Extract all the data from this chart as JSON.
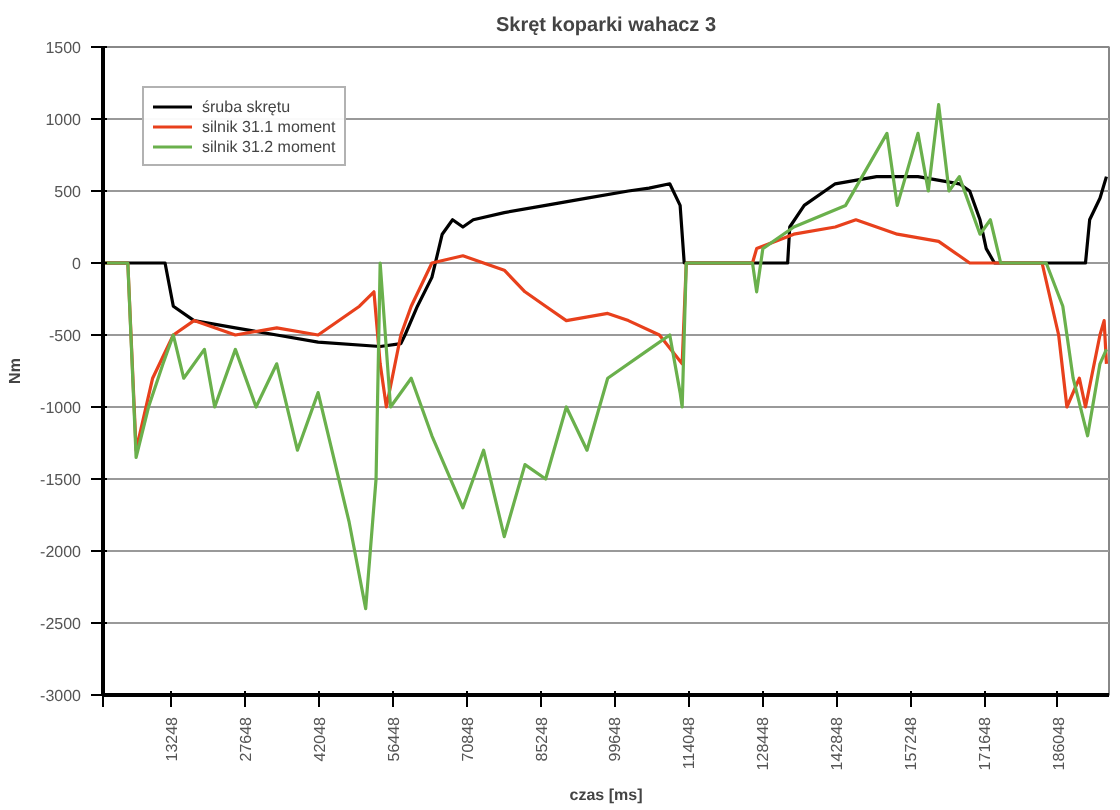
{
  "chart_data": {
    "type": "line",
    "title": "Skręt koparki wahacz 3",
    "xlabel": "czas [ms]",
    "ylabel": "Nm",
    "xlim": [
      0,
      196000
    ],
    "ylim": [
      -3000,
      1500
    ],
    "xticks": [
      {
        "value": 0,
        "label": null
      },
      13248,
      27648,
      42048,
      56448,
      70848,
      85248,
      99648,
      114048,
      128448,
      142848,
      157248,
      171648,
      186048
    ],
    "yticks": [
      -3000,
      -2500,
      -2000,
      -1500,
      -1000,
      -500,
      0,
      500,
      1000,
      1500
    ],
    "grid": "y",
    "legend": "top left",
    "marker": "none",
    "line_style": "solid",
    "series": [
      {
        "name": "śruba skrętu",
        "color": "#000000",
        "x": [
          0,
          12090,
          13700,
          17730,
          25790,
          33850,
          41910,
          54000,
          58030,
          58840,
          61260,
          64080,
          66090,
          68110,
          70120,
          72140,
          78180,
          86240,
          94300,
          102360,
          106390,
          110420,
          112440,
          113240,
          126540,
          133390,
          133800,
          136620,
          142660,
          150720,
          158780,
          166840,
          168860,
          170870,
          172080,
          173690,
          191420,
          192230,
          194240,
          195500
        ],
        "values": [
          0,
          0,
          -300,
          -400,
          -450,
          -500,
          -550,
          -580,
          -560,
          -500,
          -300,
          -100,
          200,
          300,
          250,
          300,
          350,
          400,
          450,
          500,
          520,
          550,
          400,
          0,
          0,
          0,
          250,
          400,
          550,
          600,
          600,
          550,
          500,
          300,
          100,
          0,
          0,
          300,
          450,
          600
        ]
      },
      {
        "name": "silnik 31.1 moment",
        "color": "#e8401c",
        "x": [
          0,
          4836,
          6450,
          9670,
          13700,
          17730,
          25790,
          33850,
          41910,
          49970,
          52790,
          54000,
          55210,
          58030,
          60050,
          64080,
          70120,
          78180,
          82210,
          86240,
          90270,
          98330,
          102360,
          108410,
          112840,
          113640,
          126540,
          127350,
          134600,
          142660,
          146690,
          154750,
          162810,
          166840,
          168860,
          182960,
          186190,
          187800,
          190220,
          191420,
          194240,
          195050,
          195500
        ],
        "values": [
          0,
          0,
          -1300,
          -800,
          -500,
          -400,
          -500,
          -450,
          -500,
          -300,
          -200,
          -700,
          -1000,
          -500,
          -300,
          0,
          50,
          -50,
          -200,
          -300,
          -400,
          -350,
          -400,
          -500,
          -700,
          0,
          0,
          100,
          200,
          250,
          300,
          200,
          150,
          50,
          0,
          0,
          -500,
          -1000,
          -800,
          -1000,
          -500,
          -400,
          -700
        ]
      },
      {
        "name": "silnik 31.2 moment",
        "color": "#6ab04c",
        "x": [
          0,
          4836,
          6450,
          8870,
          11690,
          13700,
          15720,
          19750,
          21760,
          25790,
          29820,
          33850,
          37880,
          41910,
          47960,
          51180,
          53200,
          54000,
          56020,
          60050,
          64080,
          70120,
          74150,
          78180,
          82210,
          86240,
          90270,
          94300,
          98330,
          106390,
          110420,
          112440,
          112840,
          113640,
          126540,
          127350,
          128560,
          134600,
          144680,
          152740,
          154750,
          158780,
          160800,
          162810,
          164830,
          166840,
          170870,
          172890,
          174900,
          183770,
          187000,
          189010,
          191830,
          194240,
          195500
        ],
        "values": [
          0,
          0,
          -1350,
          -1000,
          -700,
          -500,
          -800,
          -600,
          -1000,
          -600,
          -1000,
          -700,
          -1300,
          -900,
          -1800,
          -2400,
          -1500,
          0,
          -1000,
          -800,
          -1200,
          -1700,
          -1300,
          -1900,
          -1400,
          -1500,
          -1000,
          -1300,
          -800,
          -600,
          -500,
          -900,
          -1000,
          0,
          0,
          -200,
          100,
          250,
          400,
          900,
          400,
          900,
          500,
          1100,
          500,
          600,
          200,
          300,
          0,
          0,
          -300,
          -800,
          -1200,
          -700,
          -600
        ]
      }
    ]
  }
}
